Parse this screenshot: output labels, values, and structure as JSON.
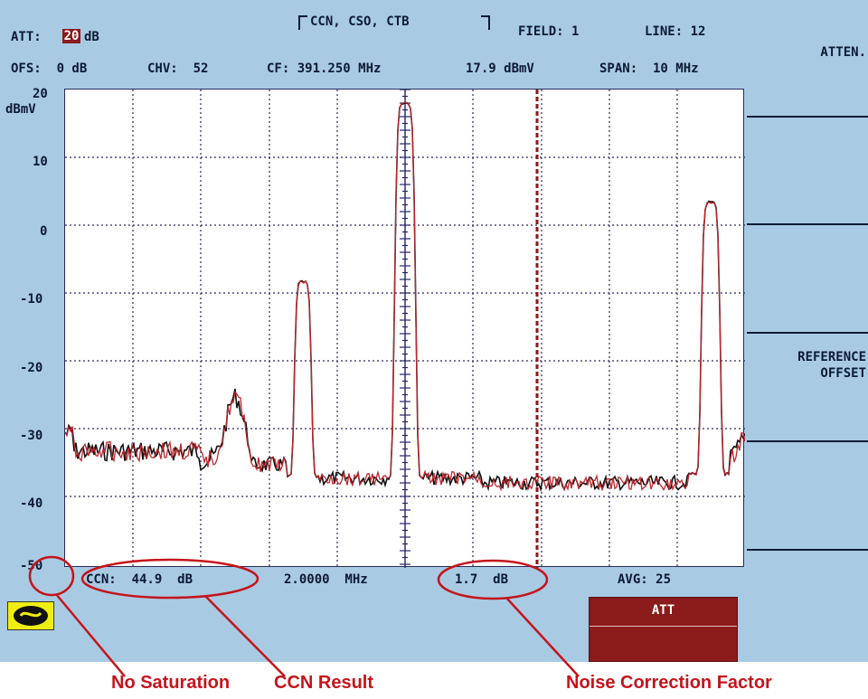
{
  "header": {
    "att_label": "ATT:",
    "att_value": "20",
    "att_unit": "dB",
    "mode": "CCN, CSO, CTB",
    "field": "FIELD: 1",
    "line": "LINE: 12",
    "ofs": "OFS:  0 dB",
    "chv": "CHV:  52",
    "cf": "CF: 391.250 MHz",
    "level": "17.9 dBmV",
    "span": "SPAN:  10 MHz"
  },
  "plot": {
    "y_unit": "dBmV",
    "y_ticks": [
      "20",
      "10",
      "0",
      "-10",
      "-20",
      "-30",
      "-40",
      "-50"
    ]
  },
  "results": {
    "ccn": "CCN:  44.9  dB",
    "frequency": "2.0000  MHz",
    "correction": "1.7  dB",
    "avg": "AVG: 25"
  },
  "softkeys": {
    "atten": "ATTEN.",
    "reference": "REFERENCE",
    "offset": "OFFSET",
    "att_button": "ATT"
  },
  "annotations": {
    "no_saturation": "No Saturation",
    "ccn_result": "CCN Result",
    "noise_correction": "Noise Correction Factor"
  },
  "colors": {
    "screen_bg": "#a8cbe3",
    "trace_red": "#c0282d",
    "trace_black": "#111111",
    "marker": "#8b1a1a",
    "annotation": "#c4151c"
  },
  "icons": {
    "saturation": "saturation-indicator-icon"
  }
}
